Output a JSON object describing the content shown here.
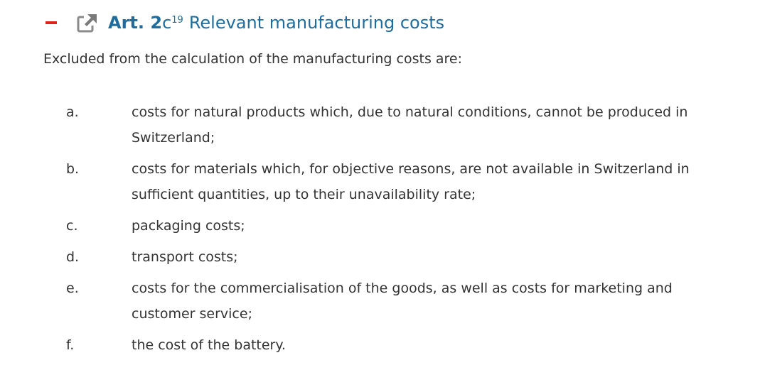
{
  "header": {
    "article": "Art. 2",
    "suffix": "c",
    "footnote": "19",
    "title": "Relevant manufacturing costs"
  },
  "intro": "Excluded from the calculation of the manufacturing costs are:",
  "items": [
    {
      "label": "a.",
      "text": "costs for natural products which, due to natural conditions, cannot be produced in Switzerland;"
    },
    {
      "label": "b.",
      "text": "costs for materials which, for objective reasons, are not available in Switzerland in sufficient quantities, up to their unavailability rate;"
    },
    {
      "label": "c.",
      "text": "packaging costs;"
    },
    {
      "label": "d.",
      "text": "transport costs;"
    },
    {
      "label": "e.",
      "text": "costs for the commercialisation of the goods, as well as costs for marketing and customer service;"
    },
    {
      "label": "f.",
      "text": "the cost of the battery."
    }
  ]
}
